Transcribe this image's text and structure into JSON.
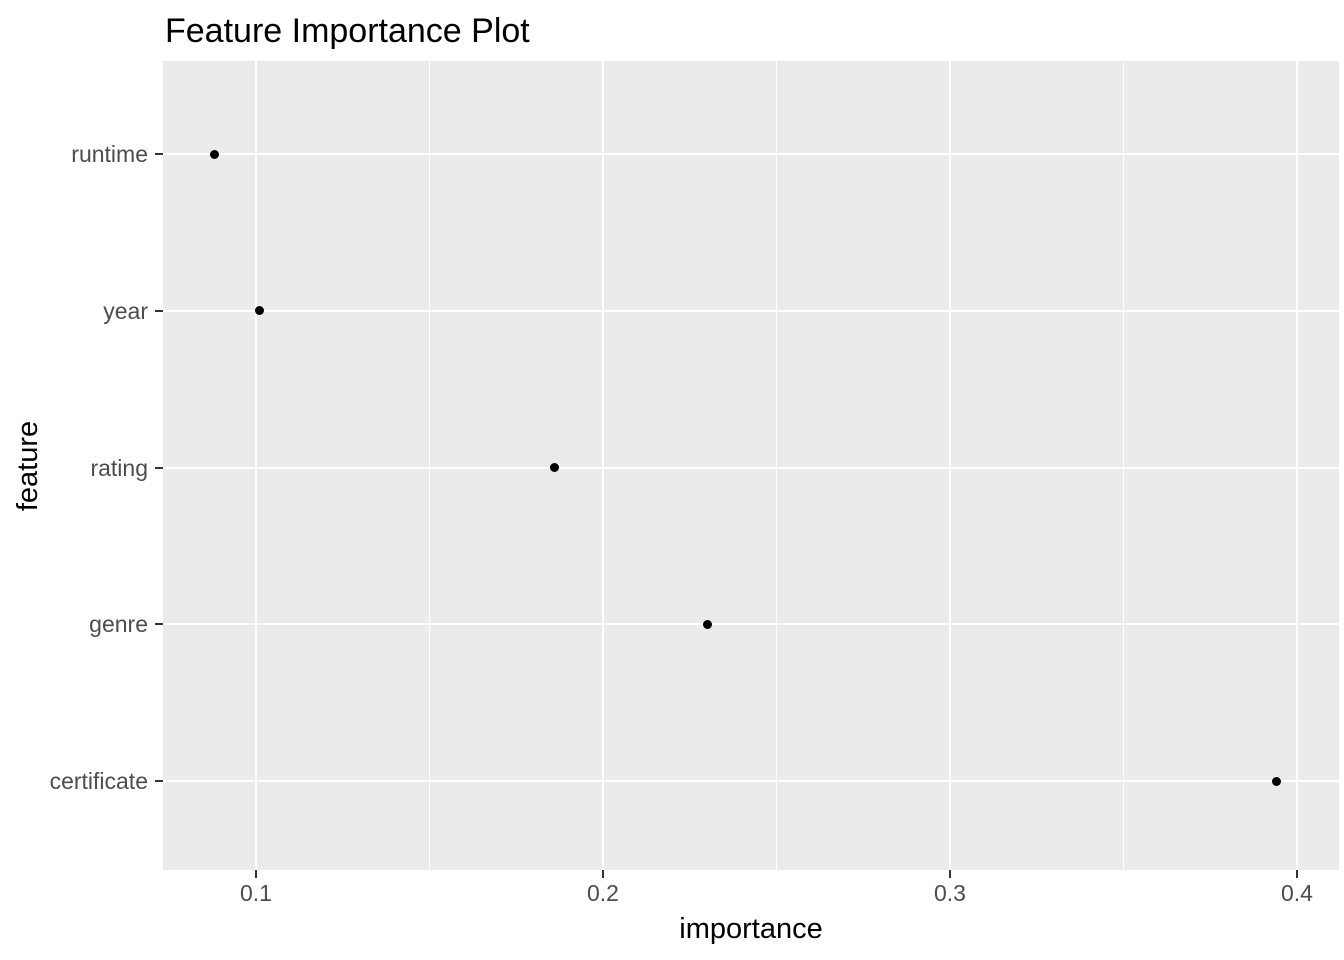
{
  "chart_data": {
    "type": "scatter",
    "title": "Feature Importance Plot",
    "xlabel": "importance",
    "ylabel": "feature",
    "categories": [
      "runtime",
      "year",
      "rating",
      "genre",
      "certificate"
    ],
    "values": [
      0.088,
      0.101,
      0.186,
      0.23,
      0.394
    ],
    "series": [
      {
        "name": "importance",
        "points": [
          {
            "feature": "runtime",
            "importance": 0.088
          },
          {
            "feature": "year",
            "importance": 0.101
          },
          {
            "feature": "rating",
            "importance": 0.186
          },
          {
            "feature": "genre",
            "importance": 0.23
          },
          {
            "feature": "certificate",
            "importance": 0.394
          }
        ]
      }
    ],
    "x_ticks": [
      0.1,
      0.2,
      0.3,
      0.4
    ],
    "x_tick_labels": [
      "0.1",
      "0.2",
      "0.3",
      "0.4"
    ],
    "x_minor_gridlines": [
      0.15,
      0.25,
      0.35
    ],
    "xlim": [
      0.0732,
      0.4121
    ],
    "grid": "major x+y white, minor x white, no minor y",
    "legend": "none",
    "theme": "ggplot-grey",
    "colors": {
      "background": "#FFFFFF",
      "panel_bg": "#EBEBEB",
      "grid": "#FFFFFF",
      "point": "#000000",
      "axis_text": "#4D4D4D",
      "axis_title": "#000000",
      "title": "#000000",
      "tick_mark": "#333333"
    }
  }
}
